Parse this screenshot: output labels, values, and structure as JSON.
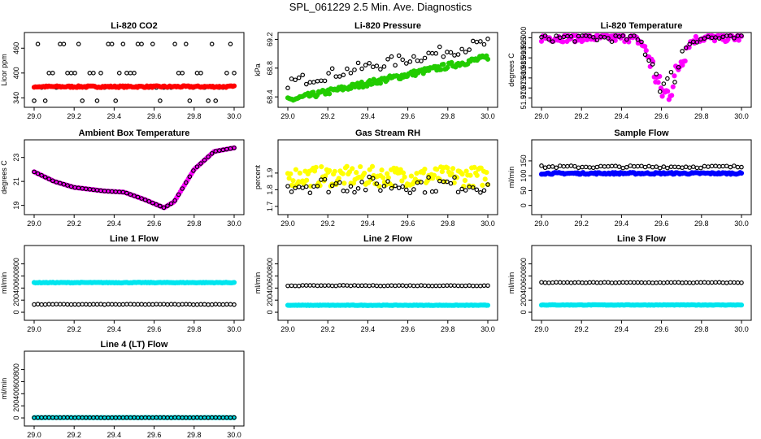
{
  "title": "SPL_061229  2.5 Min. Ave. Diagnostics",
  "colors": {
    "black": "#000000",
    "red": "#ff0000",
    "green": "#22cc00",
    "magenta": "#ff00ff",
    "yellow": "#ffff00",
    "blue": "#0000ff",
    "cyan": "#00e5ee"
  },
  "chart_data": [
    {
      "type": "scatter",
      "title": "Li-820 CO2",
      "ylabel": "Licor ppm",
      "xlim": [
        29.0,
        30.0
      ],
      "ylim": [
        325,
        490
      ],
      "xticks": [
        "29.0",
        "29.2",
        "29.4",
        "29.6",
        "29.8",
        "30.0"
      ],
      "yticks": [
        "340",
        "400",
        "460"
      ],
      "series": [
        {
          "name": "scattered",
          "color": "black",
          "style": "open",
          "pattern": "levels",
          "levels": [
            333,
            365,
            400,
            470
          ],
          "y": 367
        },
        {
          "name": "co2",
          "color": "red",
          "style": "dense",
          "pattern": "flat",
          "y": 367,
          "noise": 2
        }
      ]
    },
    {
      "type": "scatter",
      "title": "Li-820 Pressure",
      "ylabel": "kPa",
      "xlim": [
        29.0,
        30.0
      ],
      "ylim": [
        68.3,
        69.25
      ],
      "xticks": [
        "29.0",
        "29.2",
        "29.4",
        "29.6",
        "29.8",
        "30.0"
      ],
      "yticks": [
        "68.4",
        "68.8",
        "69.2"
      ],
      "series": [
        {
          "name": "black",
          "color": "black",
          "style": "open",
          "pattern": "ramp",
          "y0": 68.6,
          "y1": 69.15,
          "noise": 0.08
        },
        {
          "name": "green",
          "color": "green",
          "style": "dense",
          "pattern": "ramp",
          "y0": 68.35,
          "y1": 68.95,
          "noise": 0.04
        }
      ]
    },
    {
      "type": "scatter",
      "title": "Li-820 Temperature",
      "ylabel": "degrees C",
      "xlim": [
        29.0,
        30.0
      ],
      "ylim": [
        51.967,
        52.001
      ],
      "xticks": [
        "29.0",
        "29.2",
        "29.4",
        "29.6",
        "29.8",
        "30.0"
      ],
      "yticks": [
        "51.970",
        "51.975",
        "51.980",
        "51.985",
        "51.990",
        "51.995",
        "52.000"
      ],
      "series": [
        {
          "name": "magenta",
          "color": "magenta",
          "style": "dense",
          "pattern": "dip",
          "base": 52.0,
          "depth": 0.028,
          "center": 29.62,
          "width": 0.08,
          "noise": 0.002
        },
        {
          "name": "black",
          "color": "black",
          "style": "open",
          "pattern": "dip",
          "base": 52.0,
          "depth": 0.024,
          "center": 29.62,
          "width": 0.08,
          "noise": 0.002
        }
      ]
    },
    {
      "type": "scatter",
      "title": "Ambient Box Temperature",
      "ylabel": "degrees C",
      "xlim": [
        29.0,
        30.0
      ],
      "ylim": [
        18.5,
        24.2
      ],
      "xticks": [
        "29.0",
        "29.2",
        "29.4",
        "29.6",
        "29.8",
        "30.0"
      ],
      "yticks": [
        "19",
        "21",
        "23"
      ],
      "series": [
        {
          "name": "magenta",
          "color": "magenta",
          "style": "dense",
          "pattern": "curve",
          "pts": [
            [
              29.0,
              21.8
            ],
            [
              29.1,
              21.0
            ],
            [
              29.2,
              20.5
            ],
            [
              29.35,
              20.2
            ],
            [
              29.45,
              20.1
            ],
            [
              29.55,
              19.5
            ],
            [
              29.65,
              18.8
            ],
            [
              29.7,
              19.3
            ],
            [
              29.8,
              22.0
            ],
            [
              29.9,
              23.5
            ],
            [
              30.0,
              23.8
            ]
          ]
        },
        {
          "name": "black",
          "color": "black",
          "style": "open",
          "pattern": "curve",
          "pts": [
            [
              29.0,
              21.8
            ],
            [
              29.1,
              21.0
            ],
            [
              29.2,
              20.5
            ],
            [
              29.35,
              20.2
            ],
            [
              29.45,
              20.1
            ],
            [
              29.55,
              19.5
            ],
            [
              29.65,
              18.8
            ],
            [
              29.7,
              19.3
            ],
            [
              29.8,
              22.0
            ],
            [
              29.9,
              23.5
            ],
            [
              30.0,
              23.8
            ]
          ]
        }
      ]
    },
    {
      "type": "scatter",
      "title": "Gas Stream RH",
      "ylabel": "percent",
      "xlim": [
        29.0,
        30.0
      ],
      "ylim": [
        1.67,
        2.08
      ],
      "xticks": [
        "29.0",
        "29.2",
        "29.4",
        "29.6",
        "29.8",
        "30.0"
      ],
      "yticks": [
        "1.7",
        "1.8",
        "1.9"
      ],
      "series": [
        {
          "name": "yellow",
          "color": "yellow",
          "style": "dense",
          "pattern": "flat",
          "y": 1.88,
          "noise": 0.06
        },
        {
          "name": "black",
          "color": "black",
          "style": "open",
          "pattern": "flat",
          "y": 1.83,
          "noise": 0.05
        }
      ]
    },
    {
      "type": "scatter",
      "title": "Sample Flow",
      "ylabel": "ml/min",
      "xlim": [
        29.0,
        30.0
      ],
      "ylim": [
        -20,
        210
      ],
      "xticks": [
        "29.0",
        "29.2",
        "29.4",
        "29.6",
        "29.8",
        "30.0"
      ],
      "yticks": [
        "0",
        "50",
        "100",
        "150"
      ],
      "series": [
        {
          "name": "black",
          "color": "black",
          "style": "open",
          "pattern": "flat",
          "y": 130,
          "noise": 4
        },
        {
          "name": "blue",
          "color": "blue",
          "style": "dense",
          "pattern": "flat",
          "y": 108,
          "noise": 3
        }
      ]
    },
    {
      "type": "scatter",
      "title": "Line 1 Flow",
      "ylabel": "ml/min",
      "xlim": [
        29.0,
        30.0
      ],
      "ylim": [
        -80,
        1050
      ],
      "xticks": [
        "29.0",
        "29.2",
        "29.4",
        "29.6",
        "29.8",
        "30.0"
      ],
      "yticks": [
        "0",
        "200",
        "400",
        "600",
        "800"
      ],
      "series": [
        {
          "name": "cyan",
          "color": "cyan",
          "style": "dense",
          "pattern": "flat",
          "y": 490,
          "noise": 5
        },
        {
          "name": "black",
          "color": "black",
          "style": "open",
          "pattern": "flat",
          "y": 130,
          "noise": 4
        }
      ]
    },
    {
      "type": "scatter",
      "title": "Line 2 Flow",
      "ylabel": "ml/min",
      "xlim": [
        29.0,
        30.0
      ],
      "ylim": [
        -80,
        1050
      ],
      "xticks": [
        "29.0",
        "29.2",
        "29.4",
        "29.6",
        "29.8",
        "30.0"
      ],
      "yticks": [
        "0",
        "200",
        "400",
        "600",
        "800"
      ],
      "series": [
        {
          "name": "cyan",
          "color": "cyan",
          "style": "dense",
          "pattern": "flat",
          "y": 115,
          "noise": 4
        },
        {
          "name": "black",
          "color": "black",
          "style": "open",
          "pattern": "flat",
          "y": 440,
          "noise": 5
        }
      ]
    },
    {
      "type": "scatter",
      "title": "Line 3 Flow",
      "ylabel": "ml/min",
      "xlim": [
        29.0,
        30.0
      ],
      "ylim": [
        -80,
        1050
      ],
      "xticks": [
        "29.0",
        "29.2",
        "29.4",
        "29.6",
        "29.8",
        "30.0"
      ],
      "yticks": [
        "0",
        "200",
        "400",
        "600",
        "800"
      ],
      "series": [
        {
          "name": "cyan",
          "color": "cyan",
          "style": "dense",
          "pattern": "flat",
          "y": 120,
          "noise": 4
        },
        {
          "name": "black",
          "color": "black",
          "style": "open",
          "pattern": "flat",
          "y": 490,
          "noise": 5
        }
      ]
    },
    {
      "type": "scatter",
      "title": "Line 4 (LT) Flow",
      "ylabel": "ml/min",
      "xlim": [
        29.0,
        30.0
      ],
      "ylim": [
        -80,
        1050
      ],
      "xticks": [
        "29.0",
        "29.2",
        "29.4",
        "29.6",
        "29.8",
        "30.0"
      ],
      "yticks": [
        "0",
        "200",
        "400",
        "600",
        "800"
      ],
      "series": [
        {
          "name": "cyan",
          "color": "cyan",
          "style": "dense",
          "pattern": "flat",
          "y": 5,
          "noise": 2
        },
        {
          "name": "black",
          "color": "black",
          "style": "open",
          "pattern": "flat",
          "y": 5,
          "noise": 2
        }
      ]
    }
  ]
}
